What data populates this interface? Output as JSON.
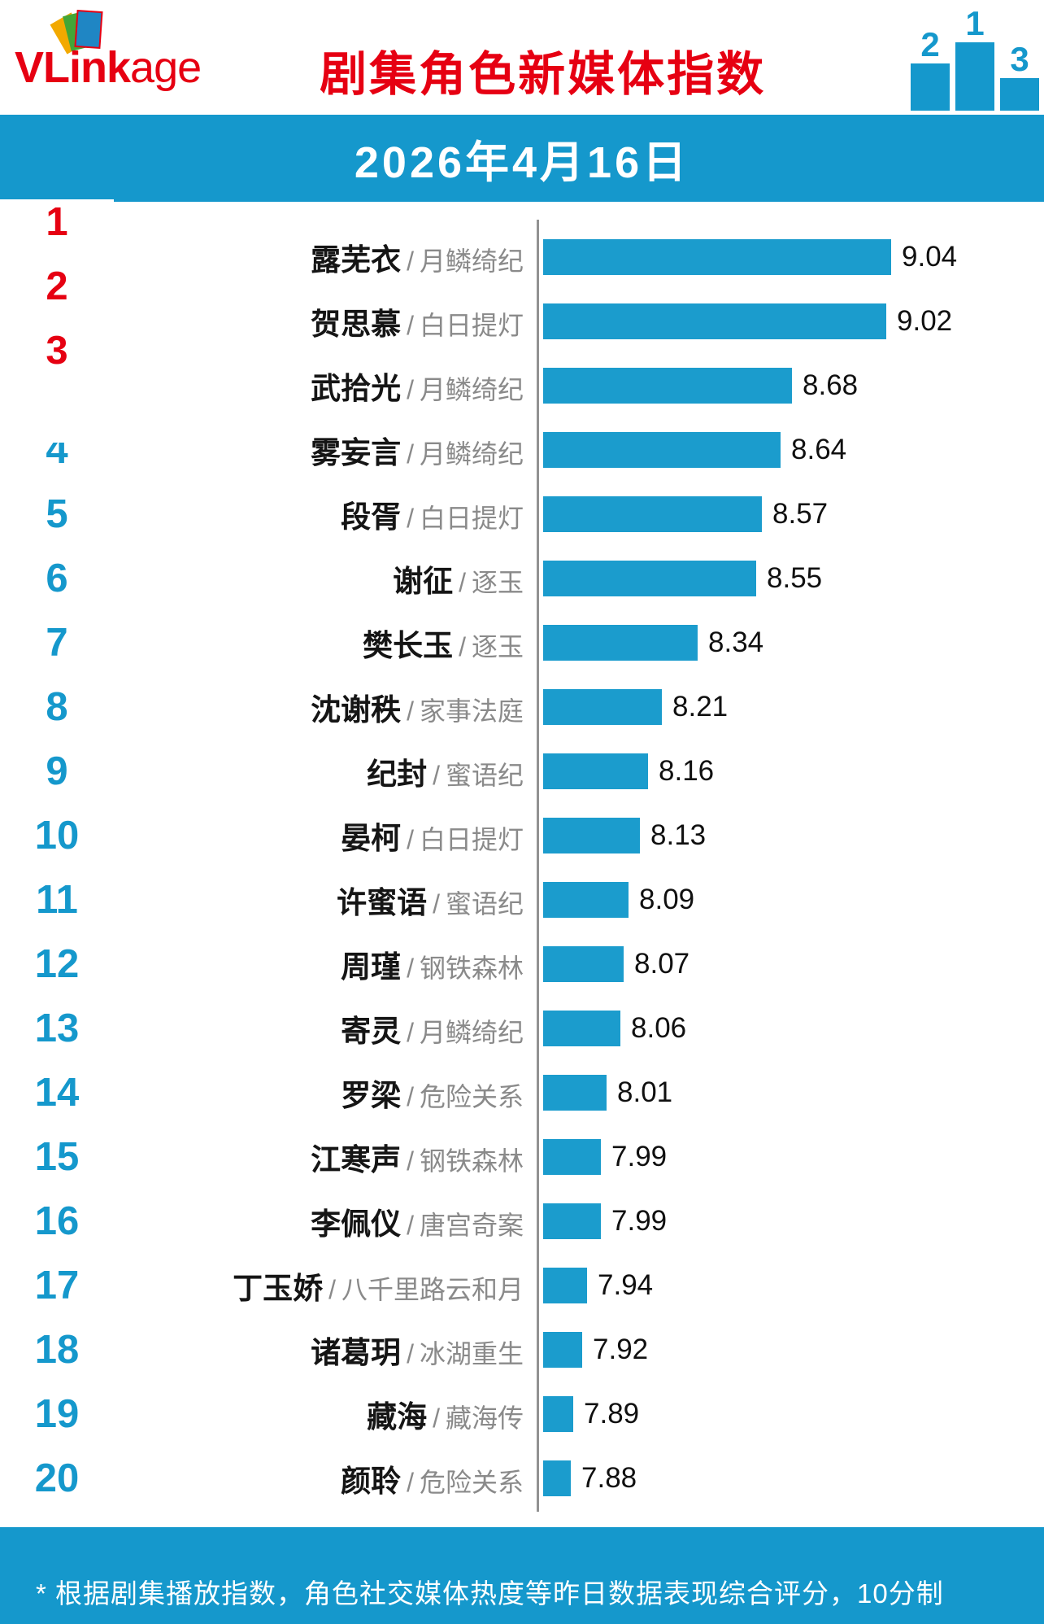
{
  "header": {
    "logo_bold": "VLink",
    "logo_rest": "age",
    "title": "剧集角色新媒体指数",
    "podium": {
      "first": "1",
      "second": "2",
      "third": "3"
    }
  },
  "date_banner": "2026年4月16日",
  "chart_data": {
    "type": "bar",
    "orientation": "horizontal",
    "title": "剧集角色新媒体指数",
    "date": "2026年4月16日",
    "separator": "/",
    "xlim": [
      7.78,
      9.1
    ],
    "legend": "none",
    "grid": false,
    "entries": [
      {
        "rank": 1,
        "name": "露芜衣",
        "drama": "月鳞绮纪",
        "value": 9.04
      },
      {
        "rank": 2,
        "name": "贺思慕",
        "drama": "白日提灯",
        "value": 9.02
      },
      {
        "rank": 3,
        "name": "武拾光",
        "drama": "月鳞绮纪",
        "value": 8.68
      },
      {
        "rank": 4,
        "name": "雾妄言",
        "drama": "月鳞绮纪",
        "value": 8.64
      },
      {
        "rank": 5,
        "name": "段胥",
        "drama": "白日提灯",
        "value": 8.57
      },
      {
        "rank": 6,
        "name": "谢征",
        "drama": "逐玉",
        "value": 8.55
      },
      {
        "rank": 7,
        "name": "樊长玉",
        "drama": "逐玉",
        "value": 8.34
      },
      {
        "rank": 8,
        "name": "沈谢秩",
        "drama": "家事法庭",
        "value": 8.21
      },
      {
        "rank": 9,
        "name": "纪封",
        "drama": "蜜语纪",
        "value": 8.16
      },
      {
        "rank": 10,
        "name": "晏柯",
        "drama": "白日提灯",
        "value": 8.13
      },
      {
        "rank": 11,
        "name": "许蜜语",
        "drama": "蜜语纪",
        "value": 8.09
      },
      {
        "rank": 12,
        "name": "周瑾",
        "drama": "钢铁森林",
        "value": 8.07
      },
      {
        "rank": 13,
        "name": "寄灵",
        "drama": "月鳞绮纪",
        "value": 8.06
      },
      {
        "rank": 14,
        "name": "罗梁",
        "drama": "危险关系",
        "value": 8.01
      },
      {
        "rank": 15,
        "name": "江寒声",
        "drama": "钢铁森林",
        "value": 7.99
      },
      {
        "rank": 16,
        "name": "李佩仪",
        "drama": "唐宫奇案",
        "value": 7.99
      },
      {
        "rank": 17,
        "name": "丁玉娇",
        "drama": "八千里路云和月",
        "value": 7.94
      },
      {
        "rank": 18,
        "name": "诸葛玥",
        "drama": "冰湖重生",
        "value": 7.92
      },
      {
        "rank": 19,
        "name": "藏海",
        "drama": "藏海传",
        "value": 7.89
      },
      {
        "rank": 20,
        "name": "颜聆",
        "drama": "危险关系",
        "value": 7.88
      }
    ]
  },
  "footer": {
    "note": "* 根据剧集播放指数，角色社交媒体热度等昨日数据表现综合评分，10分制"
  },
  "colors": {
    "accent_blue": "#1598cc",
    "bar_blue": "#1b9ccd",
    "accent_red": "#e60012",
    "drama_gray": "#8a8a8a"
  }
}
